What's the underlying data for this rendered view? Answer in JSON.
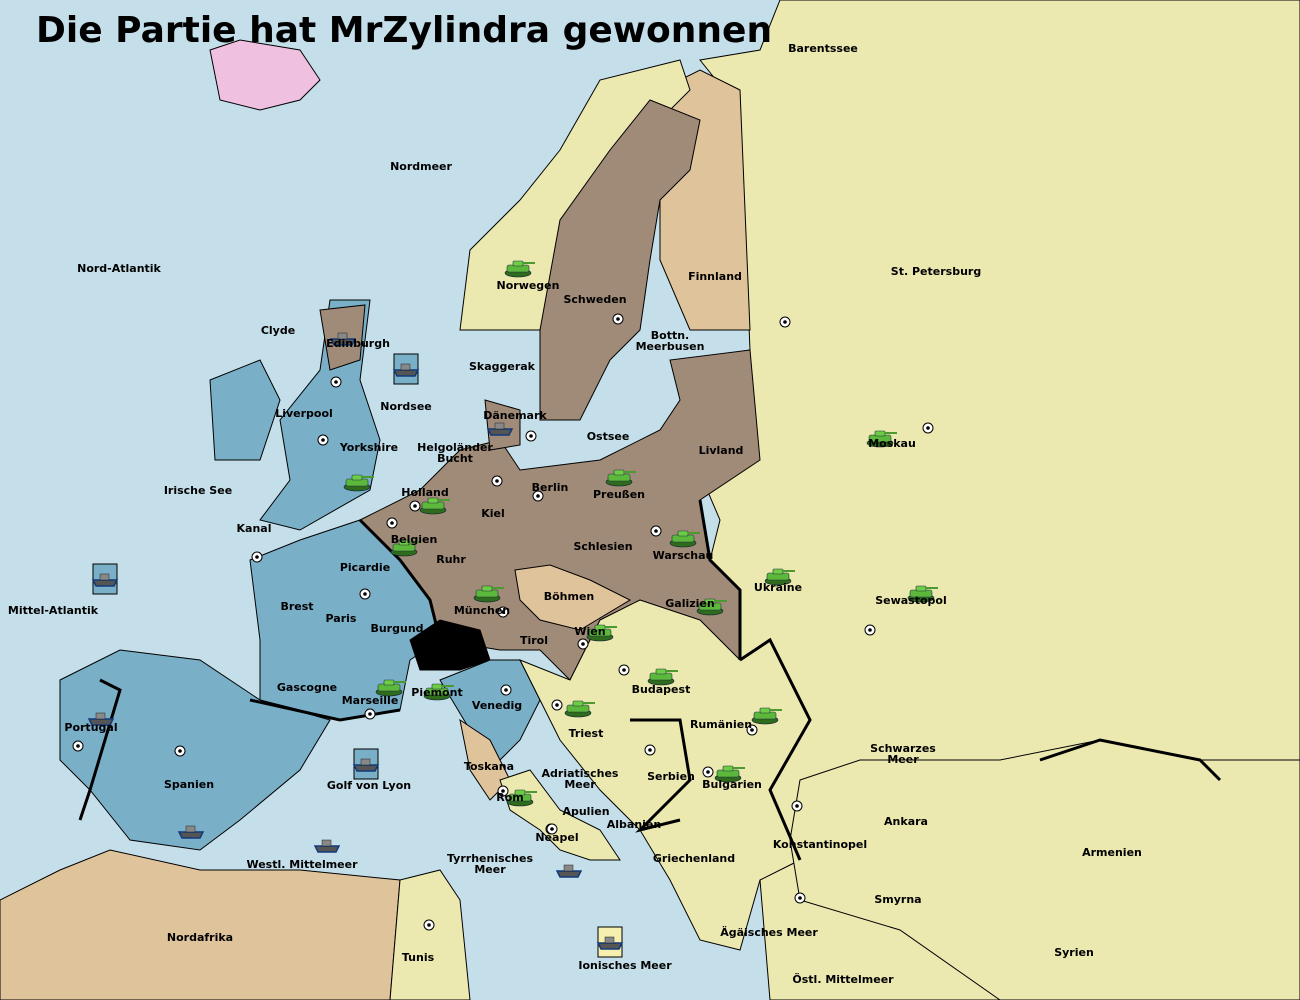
{
  "title": "Die Partie hat MrZylindra gewonnen",
  "colors": {
    "sea": "#c5dfea",
    "neutral": "#ebe8b0",
    "germany": "#a08a78",
    "england_france": "#7aafc8",
    "finland_tan": "#dfc39b",
    "iceland": "#f0c0e0",
    "switzerland": "#000000"
  },
  "provinces": [
    "Barentssee",
    "Nordmeer",
    "Nord-Atlantik",
    "Finnland",
    "St. Petersburg",
    "Norwegen",
    "Schweden",
    "Bottn. Meerbusen",
    "Clyde",
    "Edinburgh",
    "Skaggerak",
    "Nordsee",
    "Liverpool",
    "Dänemark",
    "Ostsee",
    "Yorkshire",
    "Helgoländer Bucht",
    "Livland",
    "Moskau",
    "Irische See",
    "Holland",
    "Berlin",
    "Preußen",
    "Kiel",
    "Kanal",
    "Belgien",
    "Schlesien",
    "Warschau",
    "Ruhr",
    "Picardie",
    "Ukraine",
    "Böhmen",
    "Sewastopol",
    "Mittel-Atlantik",
    "Brest",
    "München",
    "Galizien",
    "Paris",
    "Burgund",
    "Wien",
    "Tirol",
    "Gascogne",
    "Piemont",
    "Budapest",
    "Venedig",
    "Marseille",
    "Portugal",
    "Rumänien",
    "Triest",
    "Schwarzes Meer",
    "Toskana",
    "Adriatisches Meer",
    "Spanien",
    "Golf von Lyon",
    "Serbien",
    "Bulgarien",
    "Rom",
    "Apulien",
    "Ankara",
    "Albanien",
    "Neapel",
    "Konstantinopel",
    "Armenien",
    "Westl. Mittelmeer",
    "Griechenland",
    "Tyrrhenisches Meer",
    "Smyrna",
    "Nordafrika",
    "Ägäisches Meer",
    "Syrien",
    "Tunis",
    "Ionisches Meer",
    "Östl. Mittelmeer"
  ],
  "units": [
    {
      "type": "army",
      "province": "Norwegen"
    },
    {
      "type": "fleet",
      "province": "Edinburgh"
    },
    {
      "type": "fleet",
      "province": "Nordsee"
    },
    {
      "type": "fleet",
      "province": "Dänemark"
    },
    {
      "type": "army",
      "province": "Yorkshire"
    },
    {
      "type": "army",
      "province": "Holland"
    },
    {
      "type": "army",
      "province": "Belgien"
    },
    {
      "type": "army",
      "province": "Preußen"
    },
    {
      "type": "army",
      "province": "Warschau"
    },
    {
      "type": "army",
      "province": "Moskau"
    },
    {
      "type": "army",
      "province": "Ukraine"
    },
    {
      "type": "army",
      "province": "Sewastopol"
    },
    {
      "type": "army",
      "province": "München"
    },
    {
      "type": "army",
      "province": "Galizien"
    },
    {
      "type": "army",
      "province": "Wien"
    },
    {
      "type": "army",
      "province": "Budapest"
    },
    {
      "type": "army",
      "province": "Gascogne"
    },
    {
      "type": "army",
      "province": "Piemont"
    },
    {
      "type": "army",
      "province": "Triest"
    },
    {
      "type": "army",
      "province": "Rumänien"
    },
    {
      "type": "army",
      "province": "Bulgarien"
    },
    {
      "type": "army",
      "province": "Rom"
    },
    {
      "type": "fleet",
      "province": "Mittel-Atlantik"
    },
    {
      "type": "fleet",
      "province": "Portugal"
    },
    {
      "type": "fleet",
      "province": "Spanien"
    },
    {
      "type": "fleet",
      "province": "Golf von Lyon"
    },
    {
      "type": "fleet",
      "province": "Westl. Mittelmeer"
    },
    {
      "type": "fleet",
      "province": "Neapel"
    },
    {
      "type": "fleet",
      "province": "Ionisches Meer"
    }
  ]
}
